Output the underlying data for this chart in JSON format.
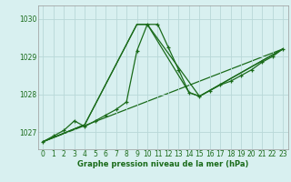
{
  "xlabel": "Graphe pression niveau de la mer (hPa)",
  "background_color": "#d8f0f0",
  "grid_color": "#b8d8d8",
  "line_color": "#1a6b1a",
  "xlim": [
    -0.5,
    23.5
  ],
  "ylim": [
    1026.55,
    1030.35
  ],
  "yticks": [
    1027,
    1028,
    1029,
    1030
  ],
  "xticks": [
    0,
    1,
    2,
    3,
    4,
    5,
    6,
    7,
    8,
    9,
    10,
    11,
    12,
    13,
    14,
    15,
    16,
    17,
    18,
    19,
    20,
    21,
    22,
    23
  ],
  "series": [
    {
      "x": [
        0,
        1,
        2,
        3,
        4,
        5,
        6,
        7,
        8,
        9,
        10,
        11,
        12,
        13,
        14,
        15,
        16,
        17,
        18,
        19,
        20,
        21,
        22,
        23
      ],
      "y": [
        1026.75,
        1026.9,
        1027.05,
        1027.3,
        1027.15,
        1027.3,
        1027.45,
        1027.6,
        1027.8,
        1029.15,
        1029.85,
        1029.85,
        1029.25,
        1028.65,
        1028.05,
        1027.95,
        1028.1,
        1028.25,
        1028.35,
        1028.5,
        1028.65,
        1028.85,
        1029.0,
        1029.2
      ]
    },
    {
      "x": [
        0,
        4,
        9,
        10,
        15,
        23
      ],
      "y": [
        1026.75,
        1027.2,
        1029.85,
        1029.85,
        1027.95,
        1029.2
      ]
    },
    {
      "x": [
        0,
        4,
        9,
        10,
        14,
        15,
        23
      ],
      "y": [
        1026.75,
        1027.2,
        1029.85,
        1029.85,
        1028.05,
        1027.95,
        1029.2
      ]
    },
    {
      "x": [
        0,
        23
      ],
      "y": [
        1026.75,
        1029.2
      ]
    }
  ]
}
